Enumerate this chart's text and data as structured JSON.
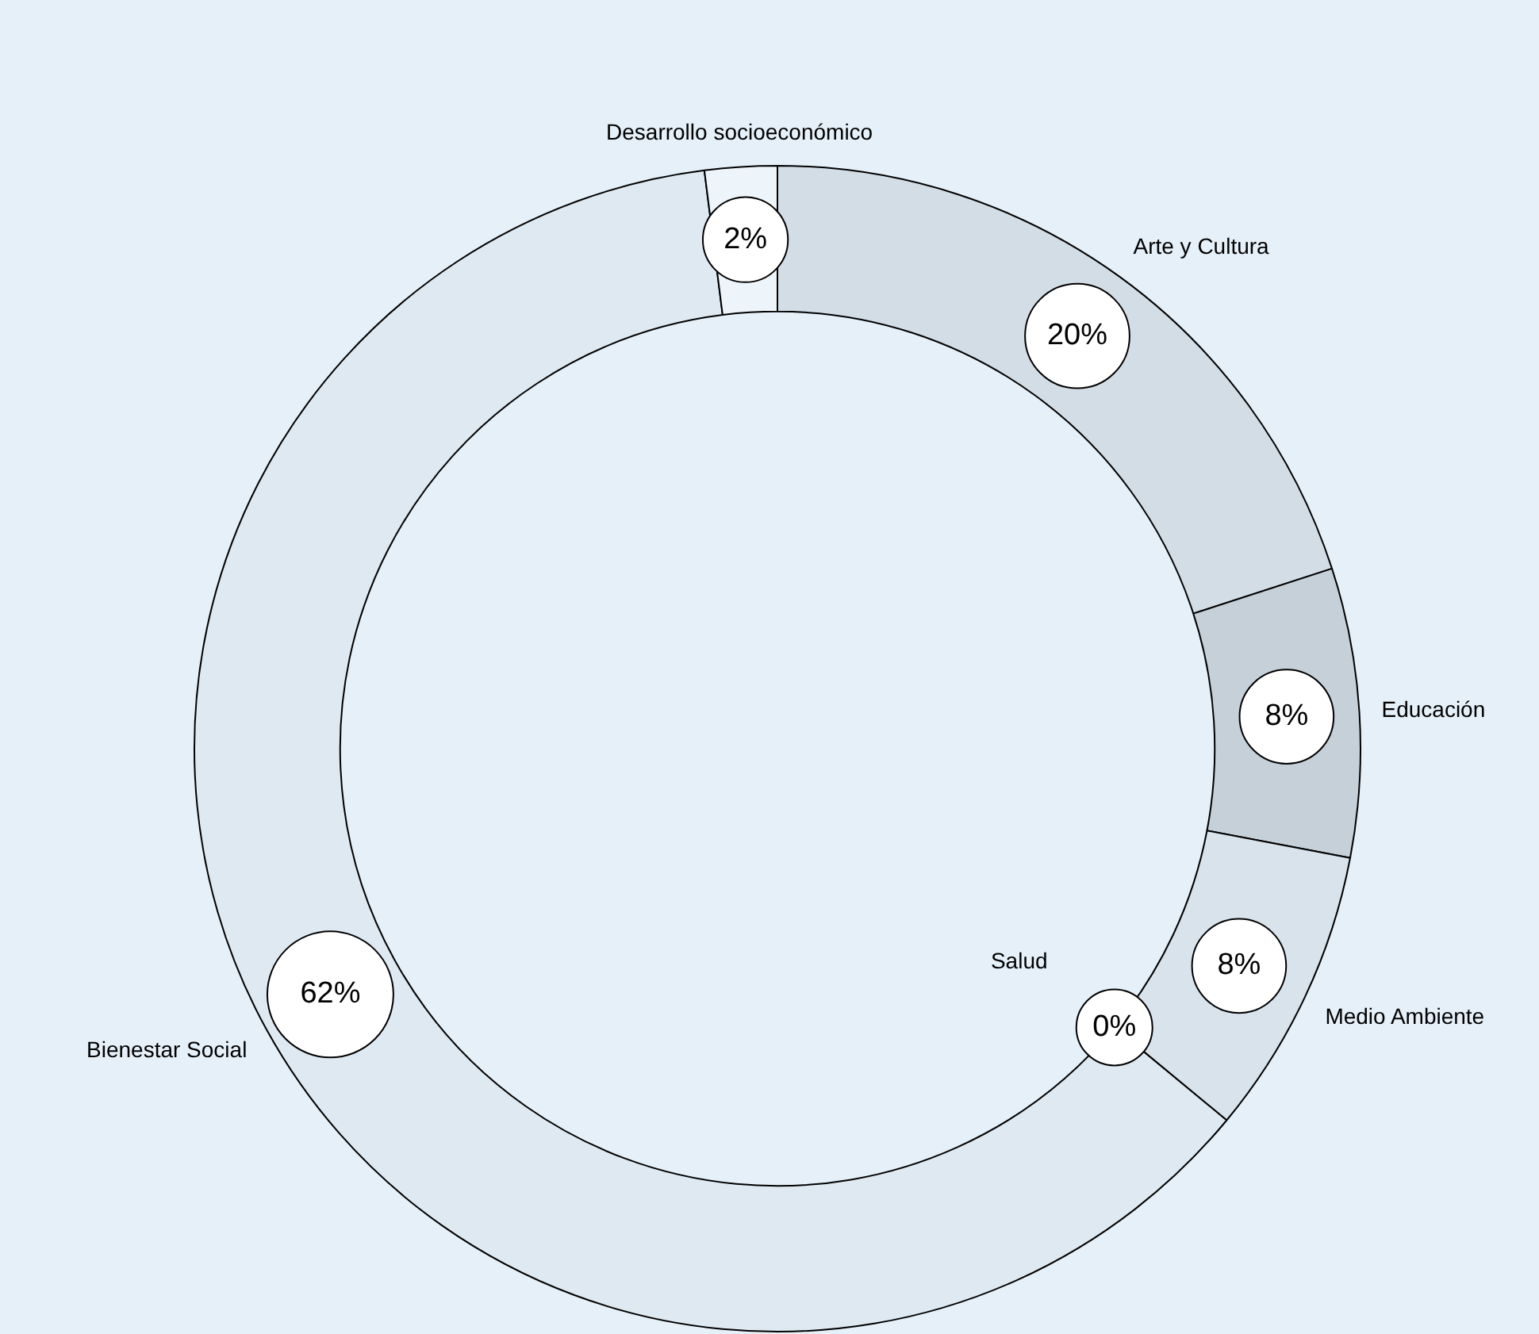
{
  "chart_data": {
    "type": "donut",
    "categories": [
      "Arte y Cultura",
      "Educación",
      "Medio Ambiente",
      "Salud",
      "Bienestar Social",
      "Desarrollo socioeconómico"
    ],
    "values": [
      20,
      8,
      8,
      0,
      62,
      2
    ],
    "value_labels": [
      "20%",
      "8%",
      "8%",
      "0%",
      "62%",
      "2%"
    ],
    "colors": [
      "#d3dde6",
      "#c6d0d9",
      "#d9e3ec",
      "#e8f1f8",
      "#dfe9f1",
      "#eef5fa"
    ],
    "legend": false
  }
}
